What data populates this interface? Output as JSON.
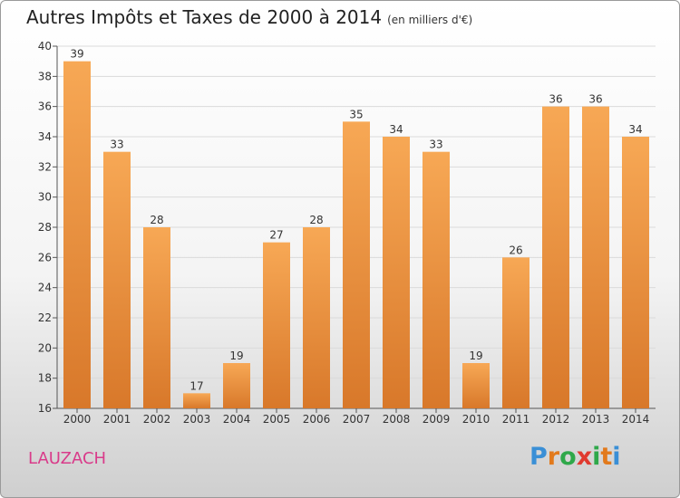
{
  "header": {
    "title": "Autres Impôts et Taxes de 2000 à 2014",
    "unit": "(en milliers d'€)"
  },
  "footer": {
    "place": "LAUZACH",
    "logo": "Proxiti"
  },
  "colors": {
    "bar_light": "#f7a855",
    "bar_dark": "#d8782a",
    "place": "#d93b8a",
    "logo_letters": [
      "#3a8fd6",
      "#e27a1c",
      "#2fa84a",
      "#e03a2f",
      "#2fa84a",
      "#e27a1c",
      "#3a8fd6"
    ]
  },
  "chart_data": {
    "type": "bar",
    "title": "Autres Impôts et Taxes de 2000 à 2014",
    "subtitle": "(en milliers d'€)",
    "categories": [
      "2000",
      "2001",
      "2002",
      "2003",
      "2004",
      "2005",
      "2006",
      "2007",
      "2008",
      "2009",
      "2010",
      "2011",
      "2012",
      "2013",
      "2014"
    ],
    "values": [
      39,
      33,
      28,
      17,
      19,
      27,
      28,
      35,
      34,
      33,
      19,
      26,
      36,
      36,
      34
    ],
    "ylim": [
      16,
      40
    ],
    "yticks": [
      16,
      18,
      20,
      22,
      24,
      26,
      28,
      30,
      32,
      34,
      36,
      38,
      40
    ],
    "grid": "horizontal"
  }
}
